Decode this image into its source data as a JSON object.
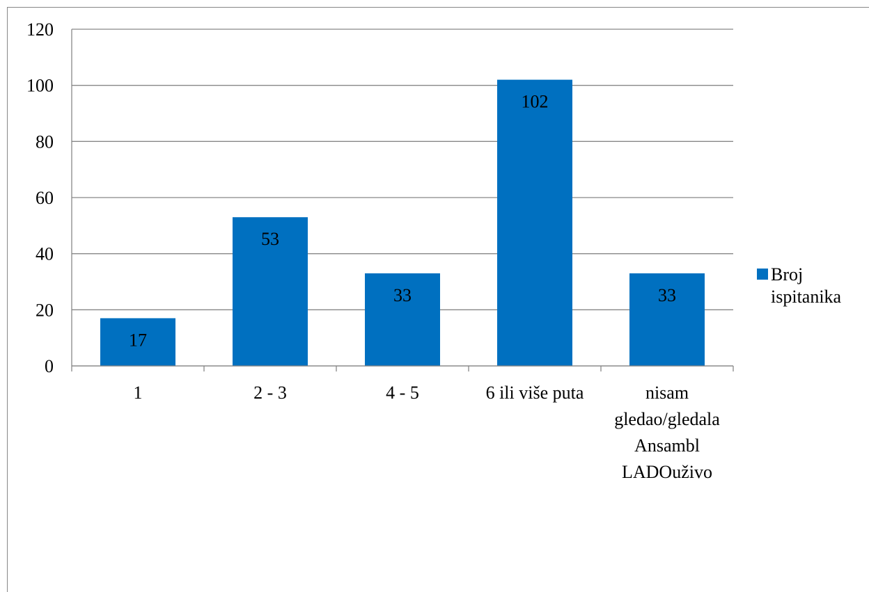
{
  "chart_data": {
    "type": "bar",
    "categories": [
      [
        "1"
      ],
      [
        "2 - 3"
      ],
      [
        "4 - 5"
      ],
      [
        "6 ili više puta"
      ],
      [
        "nisam",
        "gledao/gledala",
        "Ansambl",
        "LADOuživo"
      ]
    ],
    "series": [
      {
        "name": "Broj ispitanika",
        "values": [
          17,
          53,
          33,
          102,
          33
        ]
      }
    ],
    "ylim": [
      0,
      120
    ],
    "yticks": [
      0,
      20,
      40,
      60,
      80,
      100,
      120
    ],
    "grid": true,
    "legend": {
      "position": "right",
      "lines": [
        "Broj",
        "ispitanika"
      ]
    },
    "colors": {
      "bar": "#0070C0",
      "grid": "#878787",
      "text": "#000000",
      "frame": "#878787"
    }
  }
}
